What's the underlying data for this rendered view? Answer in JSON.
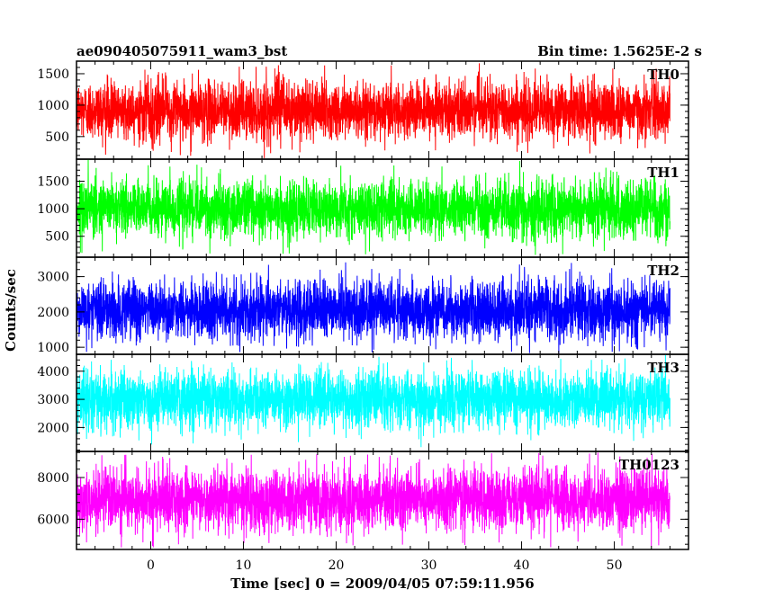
{
  "chart_data": {
    "type": "line",
    "title": "ae090405075911_wam3_bst",
    "bin_time_label": "Bin time: 1.5625E-2 s",
    "xlabel": "Time [sec] 0 = 2009/04/05 07:59:11.956",
    "ylabel": "Counts/sec",
    "xlim": [
      -8,
      58
    ],
    "x_ticks": [
      0,
      10,
      20,
      30,
      40,
      50
    ],
    "x_data_range": [
      -8.0,
      56.0
    ],
    "grid": false,
    "panels": [
      {
        "name": "TH0",
        "color": "#ff0000",
        "ylim": [
          140,
          1700
        ],
        "y_ticks": [
          500,
          1000,
          1500
        ],
        "mean": 920,
        "spread": 230,
        "min": 150,
        "max": 1700
      },
      {
        "name": "TH1",
        "color": "#00ff00",
        "ylim": [
          120,
          1900
        ],
        "y_ticks": [
          500,
          1000,
          1500
        ],
        "mean": 1000,
        "spread": 260,
        "min": 150,
        "max": 1900
      },
      {
        "name": "TH2",
        "color": "#0000ff",
        "ylim": [
          800,
          3550
        ],
        "y_ticks": [
          1000,
          2000,
          3000
        ],
        "mean": 2050,
        "spread": 420,
        "min": 820,
        "max": 3500
      },
      {
        "name": "TH3",
        "color": "#00ffff",
        "ylim": [
          1150,
          4600
        ],
        "y_ticks": [
          2000,
          3000,
          4000
        ],
        "mean": 3000,
        "spread": 520,
        "min": 1200,
        "max": 4600
      },
      {
        "name": "TH0123",
        "color": "#ff00ff",
        "ylim": [
          4550,
          9250
        ],
        "y_ticks": [
          6000,
          8000
        ],
        "mean": 6950,
        "spread": 750,
        "min": 4600,
        "max": 9200
      }
    ]
  }
}
